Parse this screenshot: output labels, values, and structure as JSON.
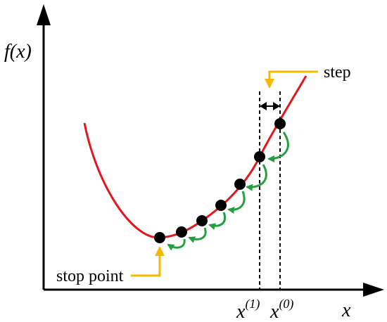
{
  "y_axis_label": "f(x)",
  "x_axis_label": "x",
  "step_label": "step",
  "stop_label": "stop point",
  "x_marks": [
    {
      "base": "x",
      "sup": "(1)"
    },
    {
      "base": "x",
      "sup": "(0)"
    }
  ]
}
